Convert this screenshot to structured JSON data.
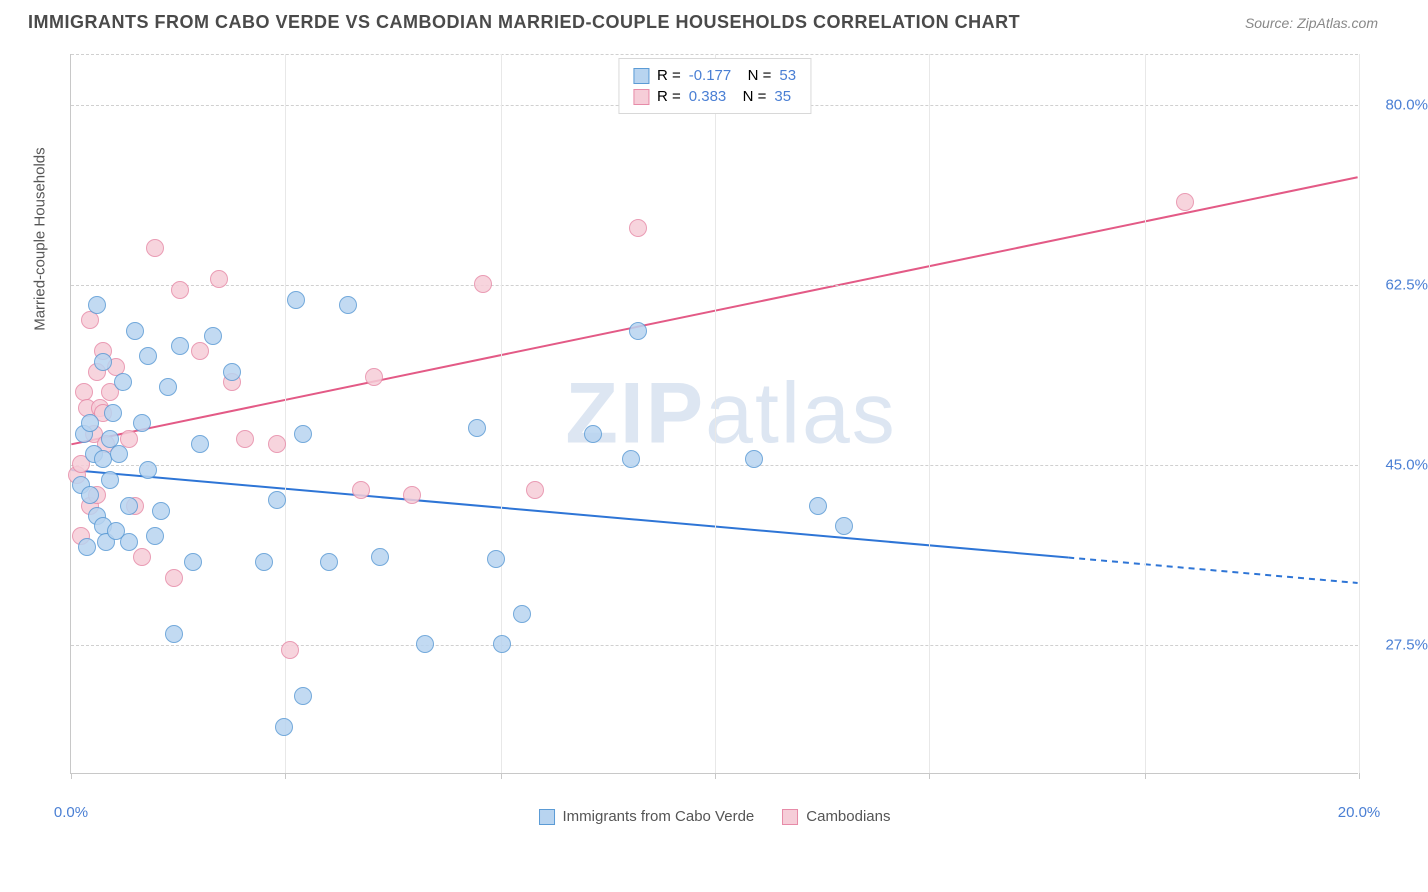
{
  "header": {
    "title": "IMMIGRANTS FROM CABO VERDE VS CAMBODIAN MARRIED-COUPLE HOUSEHOLDS CORRELATION CHART",
    "source": "Source: ZipAtlas.com"
  },
  "chart": {
    "type": "scatter",
    "watermark": "ZIPatlas",
    "xlabel": "",
    "ylabel": "Married-couple Households",
    "xlim": [
      0,
      20
    ],
    "ylim": [
      15,
      85
    ],
    "xticks": [
      0,
      3.33,
      6.67,
      10,
      13.33,
      16.67,
      20
    ],
    "xtick_labels_visible": {
      "0": "0.0%",
      "20": "20.0%"
    },
    "yticks": [
      27.5,
      45.0,
      62.5,
      80.0
    ],
    "ytick_labels": [
      "27.5%",
      "45.0%",
      "62.5%",
      "80.0%"
    ],
    "grid_color": "#d0d0d0",
    "axis_color": "#c8c8c8",
    "background_color": "#ffffff",
    "tick_label_color": "#4a7fd4",
    "axis_label_color": "#555555",
    "title_color": "#4a4a4a",
    "title_fontsize": 18,
    "label_fontsize": 15,
    "tick_fontsize": 15,
    "series": [
      {
        "name": "Immigrants from Cabo Verde",
        "fill_color": "#b8d4f0",
        "stroke_color": "#5b9bd5",
        "marker_radius": 9,
        "marker_opacity": 0.85,
        "R": "-0.177",
        "N": "53",
        "trend": {
          "x1": 0,
          "y1": 44.5,
          "x2": 20,
          "y2": 33.5,
          "color": "#2e75d6",
          "width": 2,
          "dash_after_x": 15.5
        },
        "points": [
          [
            0.15,
            43.0
          ],
          [
            0.2,
            48.0
          ],
          [
            0.25,
            37.0
          ],
          [
            0.3,
            49.0
          ],
          [
            0.3,
            42.0
          ],
          [
            0.35,
            46.0
          ],
          [
            0.4,
            60.5
          ],
          [
            0.4,
            40.0
          ],
          [
            0.5,
            55.0
          ],
          [
            0.5,
            45.5
          ],
          [
            0.5,
            39.0
          ],
          [
            0.55,
            37.5
          ],
          [
            0.6,
            47.5
          ],
          [
            0.6,
            43.5
          ],
          [
            0.65,
            50.0
          ],
          [
            0.7,
            38.5
          ],
          [
            0.75,
            46.0
          ],
          [
            0.8,
            53.0
          ],
          [
            0.9,
            41.0
          ],
          [
            0.9,
            37.5
          ],
          [
            1.0,
            58.0
          ],
          [
            1.1,
            49.0
          ],
          [
            1.2,
            44.5
          ],
          [
            1.2,
            55.5
          ],
          [
            1.3,
            38.0
          ],
          [
            1.4,
            40.5
          ],
          [
            1.5,
            52.5
          ],
          [
            1.6,
            28.5
          ],
          [
            1.7,
            56.5
          ],
          [
            1.9,
            35.5
          ],
          [
            2.0,
            47.0
          ],
          [
            2.2,
            57.5
          ],
          [
            2.5,
            54.0
          ],
          [
            3.0,
            35.5
          ],
          [
            3.2,
            41.5
          ],
          [
            3.3,
            19.5
          ],
          [
            3.5,
            61.0
          ],
          [
            3.6,
            22.5
          ],
          [
            3.6,
            48.0
          ],
          [
            4.0,
            35.5
          ],
          [
            4.3,
            60.5
          ],
          [
            4.8,
            36.0
          ],
          [
            5.5,
            27.5
          ],
          [
            6.3,
            48.5
          ],
          [
            6.6,
            35.8
          ],
          [
            6.7,
            27.5
          ],
          [
            7.0,
            30.5
          ],
          [
            8.1,
            48.0
          ],
          [
            8.8,
            58.0
          ],
          [
            10.6,
            45.5
          ],
          [
            11.6,
            41.0
          ],
          [
            12.0,
            39.0
          ],
          [
            8.7,
            45.5
          ]
        ]
      },
      {
        "name": "Cambodians",
        "fill_color": "#f6cdd8",
        "stroke_color": "#e78ba8",
        "marker_radius": 9,
        "marker_opacity": 0.85,
        "R": "0.383",
        "N": "35",
        "trend": {
          "x1": 0,
          "y1": 47.0,
          "x2": 20,
          "y2": 73.0,
          "color": "#e35a86",
          "width": 2,
          "dash_after_x": null
        },
        "points": [
          [
            0.1,
            44.0
          ],
          [
            0.15,
            45.0
          ],
          [
            0.15,
            38.0
          ],
          [
            0.2,
            52.0
          ],
          [
            0.25,
            50.5
          ],
          [
            0.3,
            59.0
          ],
          [
            0.3,
            41.0
          ],
          [
            0.35,
            48.0
          ],
          [
            0.4,
            54.0
          ],
          [
            0.4,
            42.0
          ],
          [
            0.45,
            50.5
          ],
          [
            0.5,
            50.0
          ],
          [
            0.5,
            56.0
          ],
          [
            0.55,
            47.0
          ],
          [
            0.6,
            52.0
          ],
          [
            0.7,
            54.5
          ],
          [
            0.9,
            47.5
          ],
          [
            1.0,
            41.0
          ],
          [
            1.1,
            36.0
          ],
          [
            1.3,
            66.0
          ],
          [
            1.6,
            34.0
          ],
          [
            1.7,
            62.0
          ],
          [
            2.0,
            56.0
          ],
          [
            2.3,
            63.0
          ],
          [
            2.5,
            53.0
          ],
          [
            2.7,
            47.5
          ],
          [
            3.2,
            47.0
          ],
          [
            3.4,
            27.0
          ],
          [
            4.5,
            42.5
          ],
          [
            4.7,
            53.5
          ],
          [
            5.3,
            42.0
          ],
          [
            6.4,
            62.5
          ],
          [
            7.2,
            42.5
          ],
          [
            8.8,
            68.0
          ],
          [
            17.3,
            70.5
          ]
        ]
      }
    ],
    "legend_top": {
      "border_color": "#d8d8d8",
      "background": "#ffffff",
      "stat_value_color": "#4a7fd4"
    },
    "legend_bottom": {
      "text_color": "#555555"
    }
  }
}
